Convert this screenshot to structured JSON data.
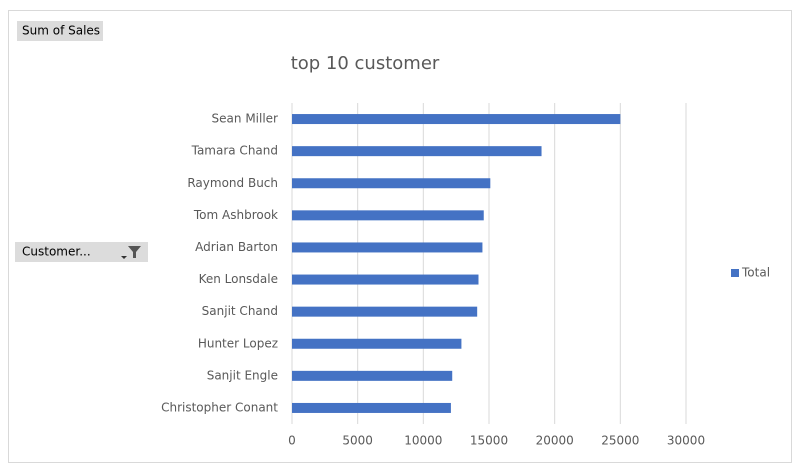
{
  "field_buttons": [
    "Sum of Sales",
    "Customer..."
  ],
  "chart_data": {
    "type": "bar",
    "orientation": "horizontal",
    "title": "top 10  customer",
    "categories": [
      "Sean Miller",
      "Tamara Chand",
      "Raymond Buch",
      "Tom Ashbrook",
      "Adrian Barton",
      "Ken Lonsdale",
      "Sanjit Chand",
      "Hunter Lopez",
      "Sanjit Engle",
      "Christopher Conant"
    ],
    "series": [
      {
        "name": "Total",
        "color": "#4472c4",
        "values": [
          25000,
          19000,
          15100,
          14600,
          14500,
          14200,
          14100,
          12900,
          12200,
          12100
        ]
      }
    ],
    "xlim": [
      0,
      30000
    ],
    "xticks": [
      0,
      5000,
      10000,
      15000,
      20000,
      25000,
      30000
    ],
    "grid": true,
    "legend": "right"
  }
}
